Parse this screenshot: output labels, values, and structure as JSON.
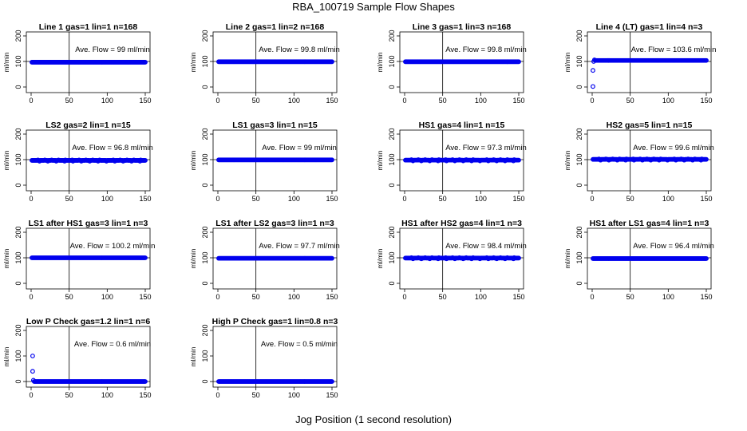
{
  "title": "RBA_100719  Sample Flow Shapes",
  "xlabel": "Jog Position (1 second resolution)",
  "panel_ylabel": "ml/min",
  "annotation_prefix": "Ave. Flow = ",
  "annotation_unit": "ml/min",
  "colors": {
    "points": "#0000ee",
    "axes": "#000000",
    "background": "#ffffff"
  },
  "chart_data": [
    {
      "type": "scatter",
      "title": "Line 1 gas=1 lin=1 n=168",
      "ave_flow": "99",
      "level": 97,
      "start": [],
      "dip": 0,
      "xlim": [
        0,
        150
      ],
      "ylim": [
        0,
        200
      ],
      "xticks": [
        0,
        50,
        100,
        150
      ],
      "yticks": [
        0,
        100,
        200
      ],
      "vline": 50,
      "hline": 100
    },
    {
      "type": "scatter",
      "title": "Line 2 gas=1 lin=2 n=168",
      "ave_flow": "99.8",
      "level": 99,
      "start": [],
      "dip": 0,
      "xlim": [
        0,
        150
      ],
      "ylim": [
        0,
        200
      ],
      "xticks": [
        0,
        50,
        100,
        150
      ],
      "yticks": [
        0,
        100,
        200
      ],
      "vline": 50,
      "hline": 100
    },
    {
      "type": "scatter",
      "title": "Line 3 gas=1 lin=3 n=168",
      "ave_flow": "99.8",
      "level": 99,
      "start": [],
      "dip": 0,
      "xlim": [
        0,
        150
      ],
      "ylim": [
        0,
        200
      ],
      "xticks": [
        0,
        50,
        100,
        150
      ],
      "yticks": [
        0,
        100,
        200
      ],
      "vline": 50,
      "hline": 100
    },
    {
      "type": "scatter",
      "title": "Line 4 (LT) gas=1 lin=4 n=3",
      "ave_flow": "103.6",
      "level": 104,
      "start": [
        [
          1,
          2
        ],
        [
          1,
          65
        ],
        [
          2,
          100
        ],
        [
          3,
          106
        ]
      ],
      "dip": 0,
      "xlim": [
        0,
        150
      ],
      "ylim": [
        0,
        200
      ],
      "xticks": [
        0,
        50,
        100,
        150
      ],
      "yticks": [
        0,
        100,
        200
      ],
      "vline": 50,
      "hline": 100
    },
    {
      "type": "scatter",
      "title": "LS2 gas=2 lin=1 n=15",
      "ave_flow": "96.8",
      "level": 97,
      "start": [],
      "dip": 3,
      "xlim": [
        0,
        150
      ],
      "ylim": [
        0,
        200
      ],
      "xticks": [
        0,
        50,
        100,
        150
      ],
      "yticks": [
        0,
        100,
        200
      ],
      "vline": 50,
      "hline": 100
    },
    {
      "type": "scatter",
      "title": "LS1 gas=3 lin=1 n=15",
      "ave_flow": "99",
      "level": 99,
      "start": [],
      "dip": 0,
      "xlim": [
        0,
        150
      ],
      "ylim": [
        0,
        200
      ],
      "xticks": [
        0,
        50,
        100,
        150
      ],
      "yticks": [
        0,
        100,
        200
      ],
      "vline": 50,
      "hline": 100
    },
    {
      "type": "scatter",
      "title": "HS1 gas=4 lin=1 n=15",
      "ave_flow": "97.3",
      "level": 98,
      "start": [],
      "dip": 3,
      "xlim": [
        0,
        150
      ],
      "ylim": [
        0,
        200
      ],
      "xticks": [
        0,
        50,
        100,
        150
      ],
      "yticks": [
        0,
        100,
        200
      ],
      "vline": 50,
      "hline": 100
    },
    {
      "type": "scatter",
      "title": "HS2 gas=5 lin=1 n=15",
      "ave_flow": "99.6",
      "level": 101,
      "start": [],
      "dip": 3,
      "xlim": [
        0,
        150
      ],
      "ylim": [
        0,
        200
      ],
      "xticks": [
        0,
        50,
        100,
        150
      ],
      "yticks": [
        0,
        100,
        200
      ],
      "vline": 50,
      "hline": 100
    },
    {
      "type": "scatter",
      "title": "LS1 after HS1 gas=3 lin=1 n=3",
      "ave_flow": "100.2",
      "level": 100,
      "start": [],
      "dip": 0,
      "xlim": [
        0,
        150
      ],
      "ylim": [
        0,
        200
      ],
      "xticks": [
        0,
        50,
        100,
        150
      ],
      "yticks": [
        0,
        100,
        200
      ],
      "vline": 50,
      "hline": 100
    },
    {
      "type": "scatter",
      "title": "LS1 after LS2 gas=3 lin=1 n=3",
      "ave_flow": "97.7",
      "level": 98,
      "start": [],
      "dip": 0,
      "xlim": [
        0,
        150
      ],
      "ylim": [
        0,
        200
      ],
      "xticks": [
        0,
        50,
        100,
        150
      ],
      "yticks": [
        0,
        100,
        200
      ],
      "vline": 50,
      "hline": 100
    },
    {
      "type": "scatter",
      "title": "HS1 after HS2 gas=4 lin=1 n=3",
      "ave_flow": "98.4",
      "level": 99,
      "start": [],
      "dip": 3,
      "xlim": [
        0,
        150
      ],
      "ylim": [
        0,
        200
      ],
      "xticks": [
        0,
        50,
        100,
        150
      ],
      "yticks": [
        0,
        100,
        200
      ],
      "vline": 50,
      "hline": 100
    },
    {
      "type": "scatter",
      "title": "HS1 after LS1 gas=4 lin=1 n=3",
      "ave_flow": "96.4",
      "level": 97,
      "start": [],
      "dip": 0,
      "xlim": [
        0,
        150
      ],
      "ylim": [
        0,
        200
      ],
      "xticks": [
        0,
        50,
        100,
        150
      ],
      "yticks": [
        0,
        100,
        200
      ],
      "vline": 50,
      "hline": 100
    },
    {
      "type": "scatter",
      "title": "Low P Check gas=1.2 lin=1 n=6",
      "ave_flow": "0.6",
      "level": 0,
      "start": [
        [
          2,
          100
        ],
        [
          2,
          40
        ],
        [
          3,
          5
        ]
      ],
      "dip": 0,
      "xlim": [
        0,
        150
      ],
      "ylim": [
        0,
        200
      ],
      "xticks": [
        0,
        50,
        100,
        150
      ],
      "yticks": [
        0,
        100,
        200
      ],
      "vline": 50,
      "hline": 0
    },
    {
      "type": "scatter",
      "title": "High P Check gas=1 lin=0.8 n=3",
      "ave_flow": "0.5",
      "level": 0,
      "start": [],
      "dip": 0,
      "xlim": [
        0,
        150
      ],
      "ylim": [
        0,
        200
      ],
      "xticks": [
        0,
        50,
        100,
        150
      ],
      "yticks": [
        0,
        100,
        200
      ],
      "vline": 50,
      "hline": 0
    }
  ]
}
